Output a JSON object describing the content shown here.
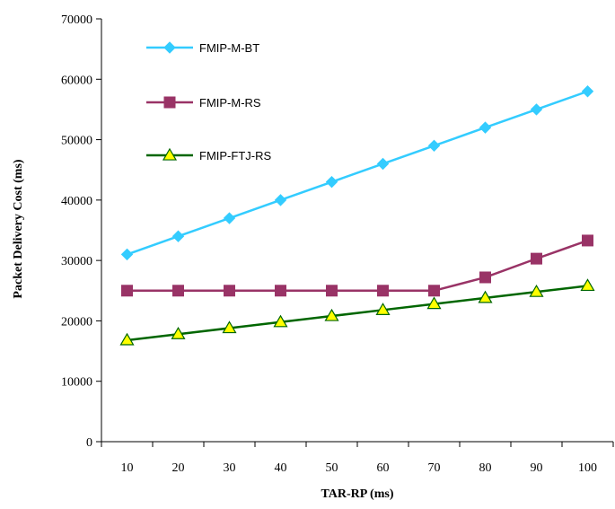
{
  "chart_data": {
    "type": "line",
    "title": "",
    "xlabel": "TAR-RP (ms)",
    "ylabel": "Packet Delivery Cost (ms)",
    "categories": [
      "10",
      "20",
      "30",
      "40",
      "50",
      "60",
      "70",
      "80",
      "90",
      "100"
    ],
    "ylim": [
      0,
      70000
    ],
    "yticks": [
      0,
      10000,
      20000,
      30000,
      40000,
      50000,
      60000,
      70000
    ],
    "grid": false,
    "legend_position": "top-left",
    "series": [
      {
        "name": "FMIP-M-BT",
        "color": "#33CCFF",
        "marker": "diamond",
        "values": [
          31000,
          34000,
          37000,
          40000,
          43000,
          46000,
          49000,
          52000,
          55000,
          58000
        ]
      },
      {
        "name": "FMIP-M-RS",
        "color": "#993366",
        "marker": "square",
        "values": [
          25000,
          25000,
          25000,
          25000,
          25000,
          25000,
          25000,
          27200,
          30300,
          33300
        ]
      },
      {
        "name": "FMIP-FTJ-RS",
        "color": "#006600",
        "marker": "triangle",
        "marker_fill": "#FFFF00",
        "values": [
          16800,
          17800,
          18800,
          19800,
          20800,
          21800,
          22800,
          23800,
          24800,
          25800
        ]
      }
    ]
  }
}
